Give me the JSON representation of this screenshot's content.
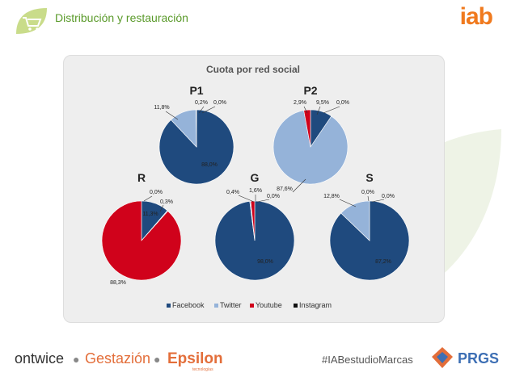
{
  "header": {
    "title": "Distribución y restauración",
    "logo": "iab"
  },
  "footer": {
    "brand1": "ontwice",
    "brand2": "Gestazión",
    "brand3": "Epsilon",
    "brand3_sub": "tecnologías",
    "hashtag": "#IABestudioMarcas",
    "brand4": "PRGS"
  },
  "colors": {
    "Facebook": "#1f4a7e",
    "Twitter": "#95b3d9",
    "Youtube": "#d0021b",
    "Instagram": "#111111"
  },
  "chart_data": {
    "type": "pie",
    "title": "Cuota por red social",
    "legend": {
      "placement": "bottom",
      "entries": [
        "Facebook",
        "Twitter",
        "Youtube",
        "Instagram"
      ]
    },
    "pies": [
      {
        "name": "P1",
        "values": [
          88.0,
          11.8,
          0.2,
          0.0
        ],
        "labels": [
          "88,0%",
          "11,8%",
          "0,2%",
          "0,0%"
        ]
      },
      {
        "name": "P2",
        "values": [
          9.5,
          87.6,
          2.9,
          0.0
        ],
        "labels": [
          "9,5%",
          "87,6%",
          "2,9%",
          "0,0%"
        ]
      },
      {
        "name": "R",
        "values": [
          11.3,
          0.3,
          88.3,
          0.0
        ],
        "labels": [
          "11,3%",
          "0,3%",
          "88,3%",
          "0,0%"
        ]
      },
      {
        "name": "G",
        "values": [
          98.0,
          0.4,
          1.6,
          0.0
        ],
        "labels": [
          "98,0%",
          "0,4%",
          "1,6%",
          "0,0%"
        ]
      },
      {
        "name": "S",
        "values": [
          87.2,
          12.8,
          0.0,
          0.0
        ],
        "labels": [
          "87,2%",
          "12,8%",
          "0,0%",
          "0,0%"
        ]
      }
    ]
  }
}
